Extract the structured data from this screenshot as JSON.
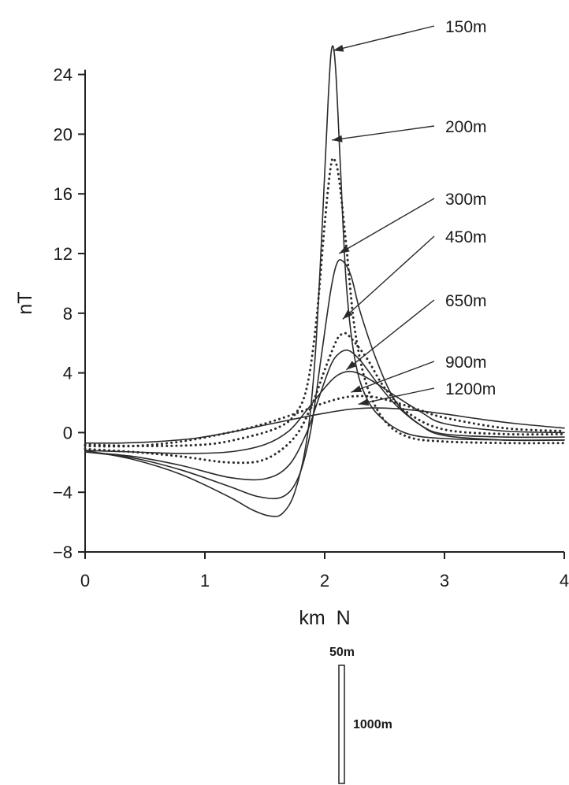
{
  "chart_data": {
    "type": "line",
    "ylabel": "nT",
    "xlabel": "km  N",
    "xlim": [
      0,
      4
    ],
    "ylim": [
      -8,
      26
    ],
    "xticks": [
      0,
      1,
      2,
      3,
      4
    ],
    "yticks": [
      -8,
      -4,
      0,
      4,
      8,
      12,
      16,
      20,
      24
    ],
    "grid": false,
    "legend": "none (leader-line labels at right)",
    "series": [
      {
        "name": "150m",
        "style": "solid",
        "x": [
          0,
          0.4,
          0.8,
          1.2,
          1.4,
          1.55,
          1.65,
          1.75,
          1.85,
          1.92,
          1.98,
          2.03,
          2.06,
          2.09,
          2.13,
          2.18,
          2.25,
          2.35,
          2.5,
          2.7,
          3.0,
          3.5,
          4.0
        ],
        "y": [
          -1.2,
          -1.8,
          -2.8,
          -4.3,
          -5.2,
          -5.6,
          -5.4,
          -4.0,
          -0.5,
          5.0,
          14.0,
          22.5,
          25.8,
          24.5,
          18.0,
          10.0,
          5.0,
          2.3,
          0.8,
          -0.1,
          -0.4,
          -0.5,
          -0.5
        ]
      },
      {
        "name": "200m",
        "style": "dotted",
        "x": [
          0,
          0.5,
          1.0,
          1.3,
          1.6,
          1.75,
          1.85,
          1.93,
          2.0,
          2.05,
          2.08,
          2.12,
          2.18,
          2.25,
          2.35,
          2.5,
          2.7,
          3.0,
          3.5,
          4.0
        ],
        "y": [
          -0.8,
          -0.9,
          -0.8,
          -0.4,
          0.3,
          1.2,
          3.0,
          7.5,
          14.0,
          17.8,
          18.3,
          17.0,
          12.5,
          7.0,
          3.2,
          0.8,
          -0.3,
          -0.6,
          -0.7,
          -0.7
        ]
      },
      {
        "name": "300m",
        "style": "solid",
        "x": [
          0,
          0.4,
          0.8,
          1.2,
          1.45,
          1.65,
          1.78,
          1.88,
          1.97,
          2.05,
          2.1,
          2.15,
          2.22,
          2.3,
          2.45,
          2.6,
          2.8,
          3.0,
          3.5,
          4.0
        ],
        "y": [
          -1.3,
          -1.7,
          -2.5,
          -3.6,
          -4.3,
          -4.3,
          -3.0,
          0.0,
          5.0,
          9.5,
          11.3,
          11.5,
          10.5,
          8.0,
          4.5,
          2.0,
          0.5,
          -0.2,
          -0.5,
          -0.5
        ]
      },
      {
        "name": "450m",
        "style": "solid",
        "x": [
          0,
          0.4,
          0.8,
          1.2,
          1.5,
          1.7,
          1.85,
          1.95,
          2.05,
          2.12,
          2.2,
          2.3,
          2.45,
          2.6,
          2.8,
          3.0,
          3.5,
          4.0
        ],
        "y": [
          -1.3,
          -1.6,
          -2.2,
          -3.0,
          -3.1,
          -2.2,
          0.0,
          2.3,
          4.5,
          5.3,
          5.5,
          4.8,
          3.2,
          1.8,
          0.5,
          -0.1,
          -0.3,
          -0.3
        ]
      },
      {
        "name": "650m",
        "style": "dotted",
        "x": [
          0,
          0.4,
          0.8,
          1.2,
          1.5,
          1.75,
          1.9,
          2.0,
          2.1,
          2.15,
          2.2,
          2.35,
          2.5,
          2.7,
          3.0,
          3.5,
          4.0
        ],
        "y": [
          -1.1,
          -1.3,
          -1.6,
          -2.0,
          -1.8,
          -0.3,
          2.0,
          4.2,
          6.2,
          6.6,
          6.5,
          5.0,
          3.0,
          1.3,
          0.2,
          -0.1,
          -0.1
        ]
      },
      {
        "name": "900m",
        "style": "solid",
        "x": [
          0,
          0.4,
          0.8,
          1.2,
          1.5,
          1.7,
          1.85,
          2.0,
          2.1,
          2.2,
          2.3,
          2.45,
          2.6,
          2.8,
          3.0,
          3.5,
          4.0
        ],
        "y": [
          -1.2,
          -1.3,
          -1.4,
          -1.3,
          -0.8,
          0.1,
          1.5,
          3.0,
          3.8,
          4.1,
          3.9,
          3.2,
          2.4,
          1.4,
          0.6,
          0.1,
          0.0
        ]
      },
      {
        "name": "1200m",
        "style": "dotted",
        "x": [
          0,
          0.4,
          0.8,
          1.2,
          1.5,
          1.8,
          2.0,
          2.2,
          2.4,
          2.6,
          2.8,
          3.0,
          3.5,
          4.0
        ],
        "y": [
          -0.9,
          -0.9,
          -0.6,
          0.0,
          0.6,
          1.4,
          2.0,
          2.4,
          2.4,
          2.0,
          1.5,
          1.0,
          0.3,
          0.1
        ]
      },
      {
        "name": "",
        "style": "solid",
        "x": [
          0,
          0.3,
          0.6,
          0.9,
          1.2,
          1.5,
          1.8,
          2.0,
          2.2,
          2.4,
          2.6,
          2.8,
          3.0,
          3.3,
          3.6,
          4.0
        ],
        "y": [
          -0.7,
          -0.7,
          -0.6,
          -0.4,
          0.0,
          0.5,
          1.0,
          1.3,
          1.55,
          1.65,
          1.6,
          1.45,
          1.25,
          0.9,
          0.6,
          0.3
        ]
      }
    ],
    "annotations": [
      "150m",
      "200m",
      "300m",
      "450m",
      "650m",
      "900m",
      "1200m"
    ]
  },
  "scale_bar": {
    "width_label": "50m",
    "height_label": "1000m"
  }
}
